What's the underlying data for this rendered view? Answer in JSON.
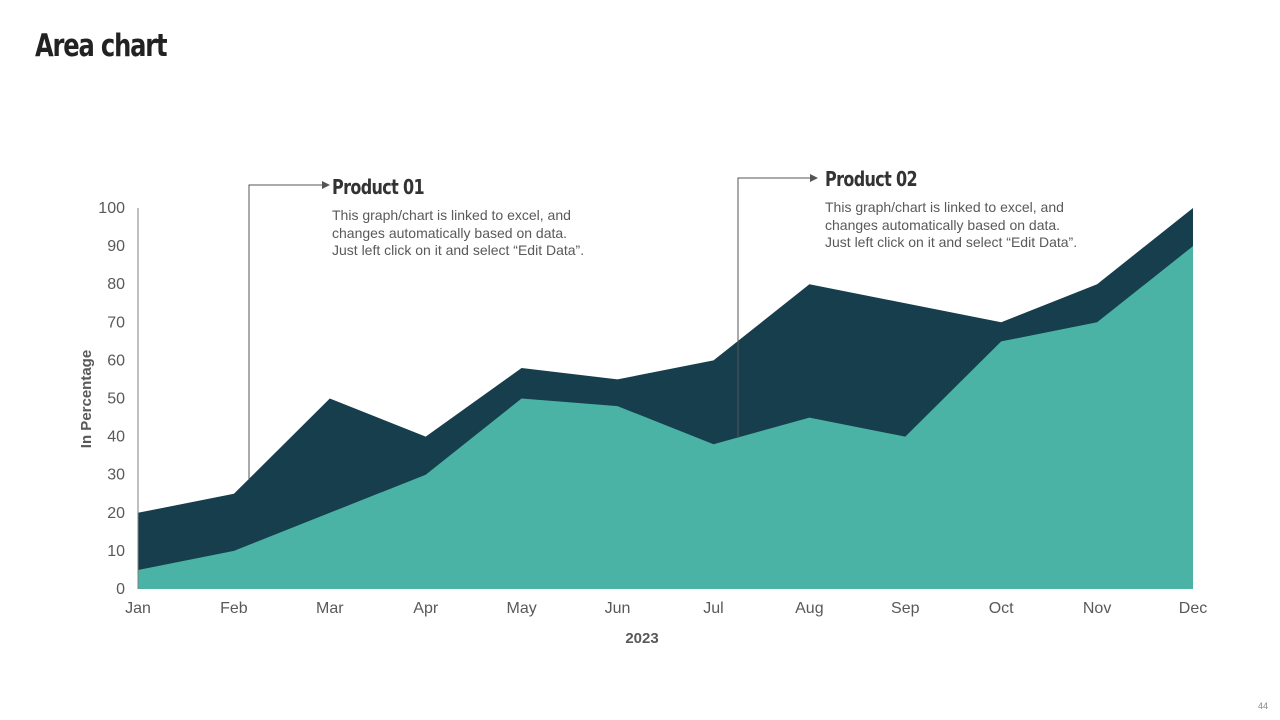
{
  "slide": {
    "title": "Area chart",
    "page_number": "44"
  },
  "callouts": [
    {
      "title": "Product 01",
      "body": "This graph/chart is linked to excel, and\nchanges automatically based on data.\nJust left click on it and select “Edit Data”."
    },
    {
      "title": "Product 02",
      "body": "This graph/chart is linked to excel, and\nchanges automatically based on data.\nJust left click on it and select “Edit Data”."
    }
  ],
  "colors": {
    "series_back": "#173e4d",
    "series_front": "#4ab3a5",
    "axis": "#7f7f7f",
    "text": "#595959"
  },
  "chart_data": {
    "type": "area",
    "title": "",
    "xlabel": "2023",
    "ylabel": "In Percentage",
    "categories": [
      "Jan",
      "Feb",
      "Mar",
      "Apr",
      "May",
      "Jun",
      "Jul",
      "Aug",
      "Sep",
      "Oct",
      "Nov",
      "Dec"
    ],
    "ylim": [
      0,
      100
    ],
    "yticks": [
      0,
      10,
      20,
      30,
      40,
      50,
      60,
      70,
      80,
      90,
      100
    ],
    "grid": false,
    "legend": "none",
    "series": [
      {
        "values": [
          20,
          25,
          50,
          40,
          58,
          55,
          60,
          80,
          75,
          70,
          80,
          100
        ]
      },
      {
        "values": [
          5,
          10,
          20,
          30,
          50,
          48,
          38,
          45,
          40,
          65,
          70,
          90
        ]
      }
    ]
  }
}
